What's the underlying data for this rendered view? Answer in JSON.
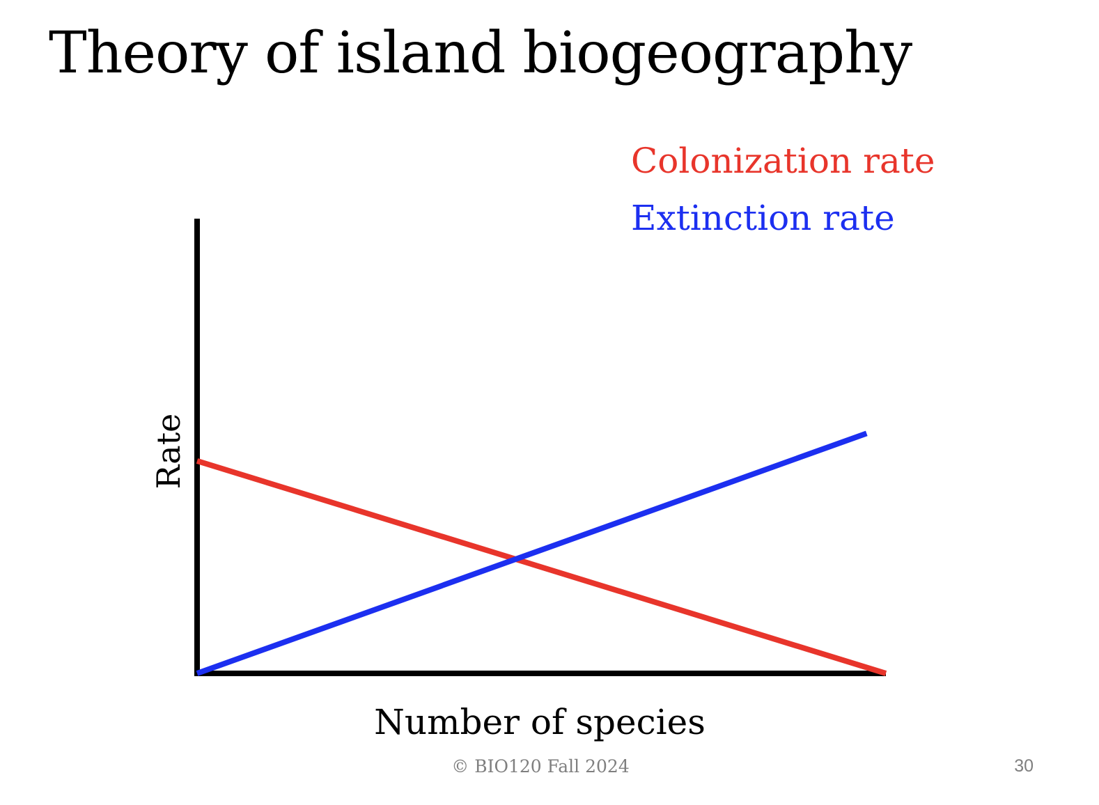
{
  "slide": {
    "title": "Theory of island biogeography",
    "footer": "© BIO120 Fall 2024",
    "page_number": "30"
  },
  "chart_data": {
    "type": "line",
    "title": "",
    "xlabel": "Number of species",
    "ylabel": "Rate",
    "xlim": [
      0,
      1
    ],
    "ylim": [
      0,
      1
    ],
    "grid": false,
    "legend": "top-right",
    "series": [
      {
        "name": "Colonization rate",
        "color": "#e8352b",
        "x": [
          0,
          1
        ],
        "y": [
          0.54,
          0
        ]
      },
      {
        "name": "Extinction rate",
        "color": "#1c2ff0",
        "x": [
          0,
          0.972
        ],
        "y": [
          0,
          0.61
        ]
      }
    ]
  }
}
